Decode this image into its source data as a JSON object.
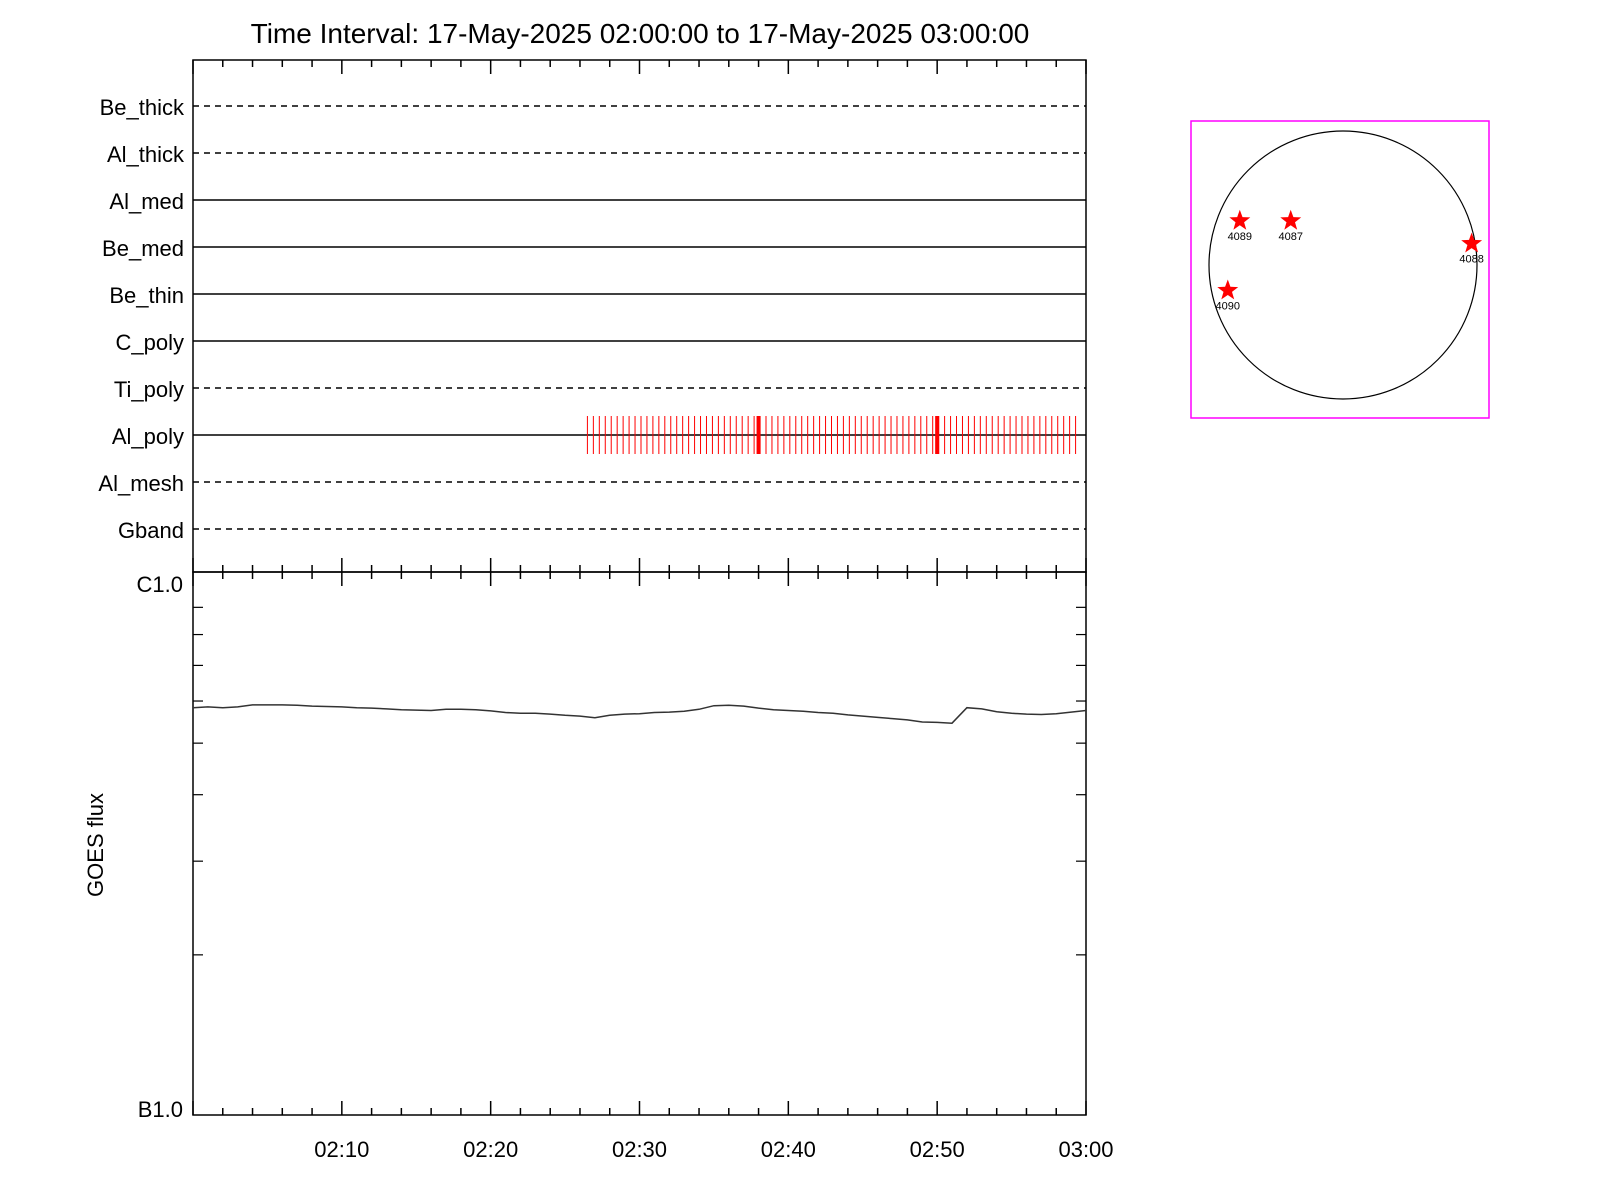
{
  "colors": {
    "axis": "#000000",
    "tick_marks": "#ff0000",
    "stars": "#ff0000",
    "disk_frame": "#ff00ff",
    "goes_line": "#333333"
  },
  "chart_data": [
    {
      "type": "timeline",
      "title": "Time Interval: 17-May-2025 02:00:00 to 17-May-2025 03:00:00",
      "x_range_minutes": [
        0,
        60
      ],
      "x_tick_labels": [
        "02:10",
        "02:20",
        "02:30",
        "02:40",
        "02:50",
        "03:00"
      ],
      "x_tick_minutes": [
        10,
        20,
        30,
        40,
        50,
        60
      ],
      "rows": [
        {
          "label": "Be_thick",
          "style": "dashed"
        },
        {
          "label": "Al_thick",
          "style": "dashed"
        },
        {
          "label": "Al_med",
          "style": "solid"
        },
        {
          "label": "Be_med",
          "style": "solid"
        },
        {
          "label": "Be_thin",
          "style": "solid"
        },
        {
          "label": "C_poly",
          "style": "solid"
        },
        {
          "label": "Ti_poly",
          "style": "dashed"
        },
        {
          "label": "Al_poly",
          "style": "solid"
        },
        {
          "label": "Al_mesh",
          "style": "dashed"
        },
        {
          "label": "Gband",
          "style": "dashed"
        }
      ],
      "observations": {
        "row": "Al_poly",
        "start_minute": 26.5,
        "end_minute": 59.6,
        "interval_minutes": 0.4,
        "highlight_minutes": [
          38.0,
          50.0
        ]
      }
    },
    {
      "type": "line",
      "ylabel": "GOES flux",
      "y_tick_labels": [
        "C1.0",
        "B1.0"
      ],
      "y_scale": "log",
      "ylim": [
        1e-07,
        1e-06
      ],
      "x_range_minutes": [
        0,
        60
      ],
      "x_tick_labels": [
        "02:10",
        "02:20",
        "02:30",
        "02:40",
        "02:50",
        "03:00"
      ],
      "series": [
        {
          "x_minutes": [
            0,
            1,
            2,
            3,
            4,
            5,
            6,
            7,
            8,
            9,
            10,
            11,
            12,
            13,
            14,
            15,
            16,
            17,
            18,
            19,
            20,
            21,
            22,
            23,
            24,
            25,
            26,
            27,
            28,
            29,
            30,
            31,
            32,
            33,
            34,
            35,
            36,
            37,
            38,
            39,
            40,
            41,
            42,
            43,
            44,
            45,
            46,
            47,
            48,
            49,
            50,
            51,
            52,
            53,
            54,
            55,
            56,
            57,
            58,
            59,
            60
          ],
          "flux": [
            5.83e-07,
            5.85e-07,
            5.83e-07,
            5.85e-07,
            5.9e-07,
            5.9e-07,
            5.9e-07,
            5.89e-07,
            5.87e-07,
            5.86e-07,
            5.85e-07,
            5.83e-07,
            5.82e-07,
            5.8e-07,
            5.78e-07,
            5.77e-07,
            5.76e-07,
            5.79e-07,
            5.79e-07,
            5.78e-07,
            5.75e-07,
            5.71e-07,
            5.69e-07,
            5.69e-07,
            5.67e-07,
            5.64e-07,
            5.62e-07,
            5.58e-07,
            5.64e-07,
            5.67e-07,
            5.68e-07,
            5.71e-07,
            5.72e-07,
            5.74e-07,
            5.79e-07,
            5.88e-07,
            5.89e-07,
            5.87e-07,
            5.82e-07,
            5.78e-07,
            5.76e-07,
            5.74e-07,
            5.71e-07,
            5.69e-07,
            5.65e-07,
            5.62e-07,
            5.59e-07,
            5.56e-07,
            5.53e-07,
            5.48e-07,
            5.47e-07,
            5.45e-07,
            5.83e-07,
            5.8e-07,
            5.73e-07,
            5.69e-07,
            5.67e-07,
            5.66e-07,
            5.68e-07,
            5.72e-07,
            5.76e-07
          ]
        }
      ]
    },
    {
      "type": "scatter",
      "kind": "solar-disk",
      "points": [
        {
          "label": "4089",
          "x": -0.77,
          "y": 0.33
        },
        {
          "label": "4087",
          "x": -0.39,
          "y": 0.33
        },
        {
          "label": "4088",
          "x": 0.96,
          "y": 0.16
        },
        {
          "label": "4090",
          "x": -0.86,
          "y": -0.19
        }
      ]
    }
  ]
}
